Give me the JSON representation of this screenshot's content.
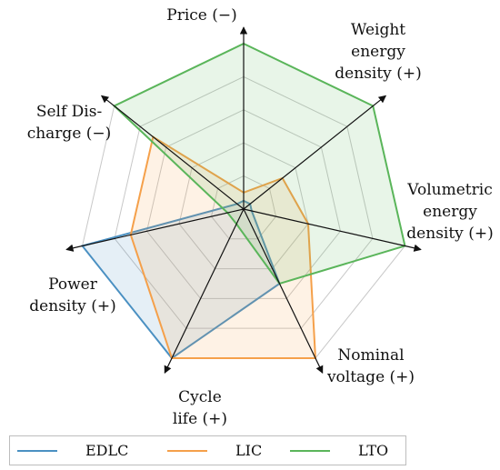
{
  "chart_data": {
    "type": "radar",
    "axes": [
      {
        "id": "price",
        "label_lines": [
          "Price (−)"
        ]
      },
      {
        "id": "weight",
        "label_lines": [
          "Weight",
          "energy",
          "density (+)"
        ]
      },
      {
        "id": "volumetric",
        "label_lines": [
          "Volumetric",
          "energy",
          "density (+)"
        ]
      },
      {
        "id": "voltage",
        "label_lines": [
          "Nominal",
          "voltage (+)"
        ]
      },
      {
        "id": "cycle",
        "label_lines": [
          "Cycle",
          "life (+)"
        ]
      },
      {
        "id": "power",
        "label_lines": [
          "Power",
          "density (+)"
        ]
      },
      {
        "id": "selfdischarge",
        "label_lines": [
          "Self Dis-",
          "charge (−)"
        ]
      }
    ],
    "grid": {
      "levels": 5,
      "max": 1.0
    },
    "series": [
      {
        "name": "EDLC",
        "color": "#4a90c2",
        "values": [
          0.05,
          0.05,
          0.05,
          0.5,
          1.0,
          1.0,
          0.05
        ]
      },
      {
        "name": "LIC",
        "color": "#f5a04a",
        "values": [
          0.1,
          0.3,
          0.4,
          1.0,
          1.0,
          0.7,
          0.7
        ]
      },
      {
        "name": "LTO",
        "color": "#5ab55a",
        "values": [
          1.0,
          1.0,
          1.0,
          0.5,
          0.1,
          0.1,
          1.0
        ]
      }
    ]
  },
  "legend": {
    "items": [
      {
        "label": "EDLC",
        "color": "#4a90c2"
      },
      {
        "label": "LIC",
        "color": "#f5a04a"
      },
      {
        "label": "LTO",
        "color": "#5ab55a"
      }
    ]
  }
}
